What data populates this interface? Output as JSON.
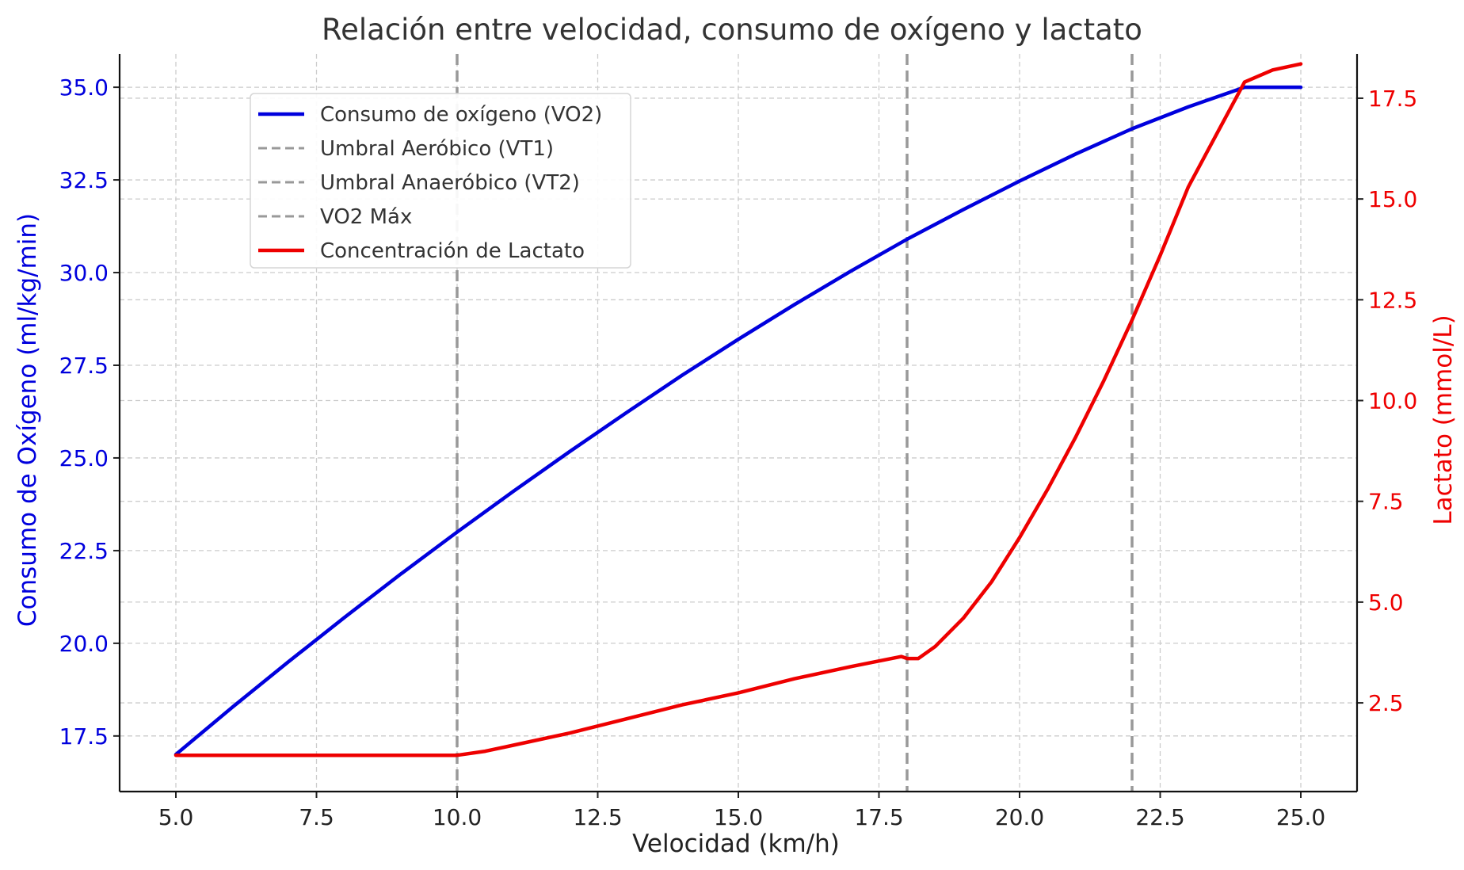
{
  "chart_data": {
    "type": "line",
    "title": "Relación entre velocidad, consumo de oxígeno y lactato",
    "xlabel": "Velocidad (km/h)",
    "ylabel_left": "Consumo de Oxígeno (ml/kg/min)",
    "ylabel_right": "Lactato (mmol/L)",
    "xlim": [
      4.0,
      26.0
    ],
    "ylim_left": [
      16.0,
      35.9
    ],
    "ylim_right": [
      0.3,
      18.6
    ],
    "x_ticks": [
      "5.0",
      "7.5",
      "10.0",
      "12.5",
      "15.0",
      "17.5",
      "20.0",
      "22.5",
      "25.0"
    ],
    "y_left_ticks": [
      "17.5",
      "20.0",
      "22.5",
      "25.0",
      "27.5",
      "30.0",
      "32.5",
      "35.0"
    ],
    "y_right_ticks": [
      "2.5",
      "5.0",
      "7.5",
      "10.0",
      "12.5",
      "15.0",
      "17.5"
    ],
    "grid": true,
    "legend_position": "top-left",
    "colors": {
      "vo2": "#0000dd",
      "lactate": "#ee0000",
      "threshold": "#999999",
      "left_axis_text": "#0000dd",
      "right_axis_text": "#ee0000",
      "grid": "#cccccc"
    },
    "legend": [
      {
        "label": "Consumo de oxígeno (VO2)",
        "style": "solid",
        "color": "#0000dd"
      },
      {
        "label": "Umbral Aeróbico (VT1)",
        "style": "dashed",
        "color": "#999999"
      },
      {
        "label": "Umbral Anaeróbico (VT2)",
        "style": "dashed",
        "color": "#999999"
      },
      {
        "label": "VO2 Máx",
        "style": "dashed",
        "color": "#999999"
      },
      {
        "label": "Concentración de Lactato",
        "style": "solid",
        "color": "#ee0000"
      }
    ],
    "vertical_lines": [
      {
        "name": "Umbral Aeróbico (VT1)",
        "x": 10.0
      },
      {
        "name": "Umbral Anaeróbico (VT2)",
        "x": 18.0
      },
      {
        "name": "VO2 Máx",
        "x": 22.0
      }
    ],
    "series": [
      {
        "name": "Consumo de oxígeno (VO2)",
        "axis": "left",
        "x": [
          5,
          6,
          7,
          8,
          9,
          10,
          11,
          12,
          13,
          14,
          15,
          16,
          17,
          18,
          19,
          20,
          21,
          22,
          23,
          24,
          25
        ],
        "y": [
          17.0,
          18.27,
          19.5,
          20.7,
          21.87,
          23.0,
          24.1,
          25.17,
          26.21,
          27.23,
          28.2,
          29.14,
          30.04,
          30.9,
          31.7,
          32.47,
          33.2,
          33.88,
          34.47,
          35.0,
          35.0
        ]
      },
      {
        "name": "Concentración de Lactato",
        "axis": "right",
        "x": [
          5.0,
          6.0,
          7.0,
          8.0,
          9.0,
          10.0,
          10.5,
          11.0,
          12.0,
          13.0,
          14.0,
          15.0,
          16.0,
          17.0,
          17.9,
          18.0,
          18.2,
          18.5,
          19.0,
          19.5,
          20.0,
          20.5,
          21.0,
          21.5,
          22.0,
          22.5,
          23.0,
          23.5,
          24.0,
          24.5,
          25.0
        ],
        "y": [
          1.2,
          1.2,
          1.2,
          1.2,
          1.2,
          1.2,
          1.3,
          1.45,
          1.75,
          2.1,
          2.45,
          2.75,
          3.1,
          3.4,
          3.65,
          3.6,
          3.6,
          3.9,
          4.6,
          5.5,
          6.6,
          7.8,
          9.1,
          10.5,
          12.0,
          13.6,
          15.3,
          16.6,
          17.9,
          18.2,
          18.35
        ]
      }
    ]
  }
}
